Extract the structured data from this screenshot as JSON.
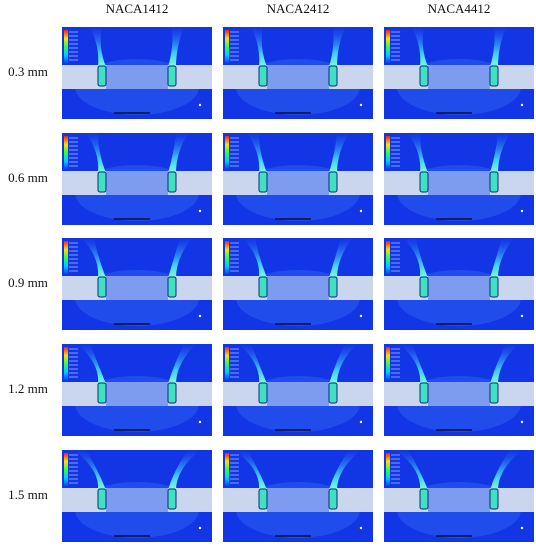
{
  "figure": {
    "columns": [
      "NACA1412",
      "NACA2412",
      "NACA4412"
    ],
    "rows": [
      {
        "label": "0.3 mm"
      },
      {
        "label": "0.6 mm"
      },
      {
        "label": "0.9 mm"
      },
      {
        "label": "1.2 mm"
      },
      {
        "label": "1.5 mm"
      }
    ]
  }
}
